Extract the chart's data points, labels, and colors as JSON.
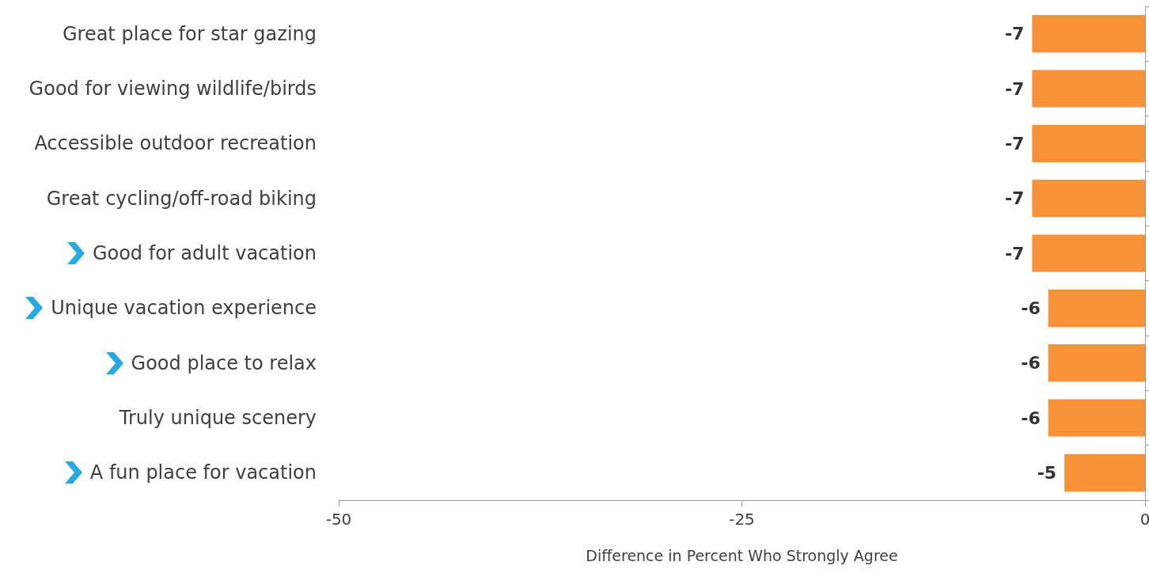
{
  "chart_data": {
    "type": "bar",
    "orientation": "horizontal",
    "xlabel": "Difference in Percent Who Strongly Agree",
    "categories": [
      "Great place for star gazing",
      "Good for viewing wildlife/birds",
      "Accessible outdoor recreation",
      "Great cycling/off-road biking",
      "Good for adult vacation",
      "Unique vacation experience",
      "Good place to relax",
      "Truly unique scenery",
      "A fun place for vacation"
    ],
    "values": [
      -7,
      -7,
      -7,
      -7,
      -7,
      -6,
      -6,
      -6,
      -5
    ],
    "color": "#f79239",
    "xlim": [
      -50,
      0
    ],
    "xticks": [
      -50,
      -25,
      0
    ],
    "grid": false,
    "data_labels": true
  }
}
